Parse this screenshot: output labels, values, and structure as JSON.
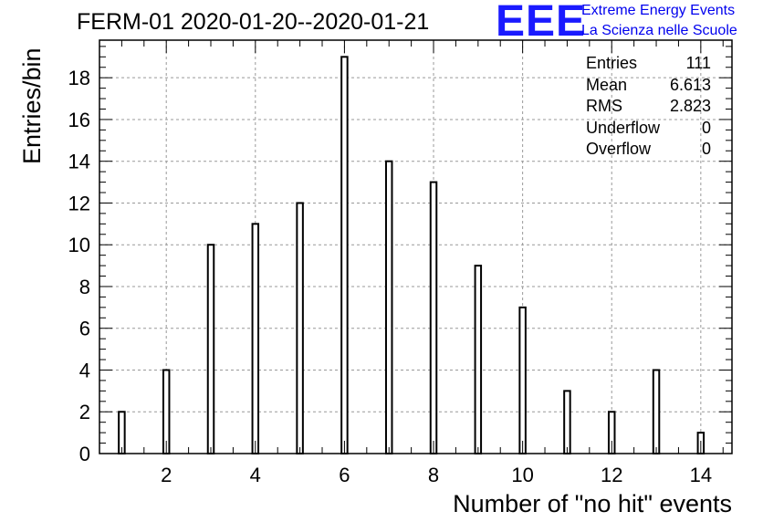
{
  "title": "FERM-01 2020-01-20--2020-01-21",
  "logo": {
    "text": "EEE",
    "line1": "Extreme Energy Events",
    "line2": "La Scienza nelle Scuole",
    "color": "#1a1aff"
  },
  "stats": [
    {
      "label": "Entries",
      "value": "111"
    },
    {
      "label": "Mean",
      "value": "6.613"
    },
    {
      "label": "RMS",
      "value": "2.823"
    },
    {
      "label": "Underflow",
      "value": "0"
    },
    {
      "label": "Overflow",
      "value": "0"
    }
  ],
  "chart_data": {
    "type": "bar",
    "xlabel": "Number of \"no hit\" events",
    "ylabel": "Entries/bin",
    "xlim": [
      0.5,
      14.7
    ],
    "ylim": [
      0,
      19.8
    ],
    "xticks": [
      2,
      4,
      6,
      8,
      10,
      12,
      14
    ],
    "yticks": [
      0,
      2,
      4,
      6,
      8,
      10,
      12,
      14,
      16,
      18
    ],
    "grid": true,
    "x": [
      1,
      2,
      3,
      4,
      5,
      6,
      7,
      8,
      9,
      10,
      11,
      12,
      13,
      14
    ],
    "values": [
      2,
      4,
      10,
      11,
      12,
      19,
      14,
      13,
      9,
      7,
      3,
      2,
      4,
      1
    ]
  }
}
